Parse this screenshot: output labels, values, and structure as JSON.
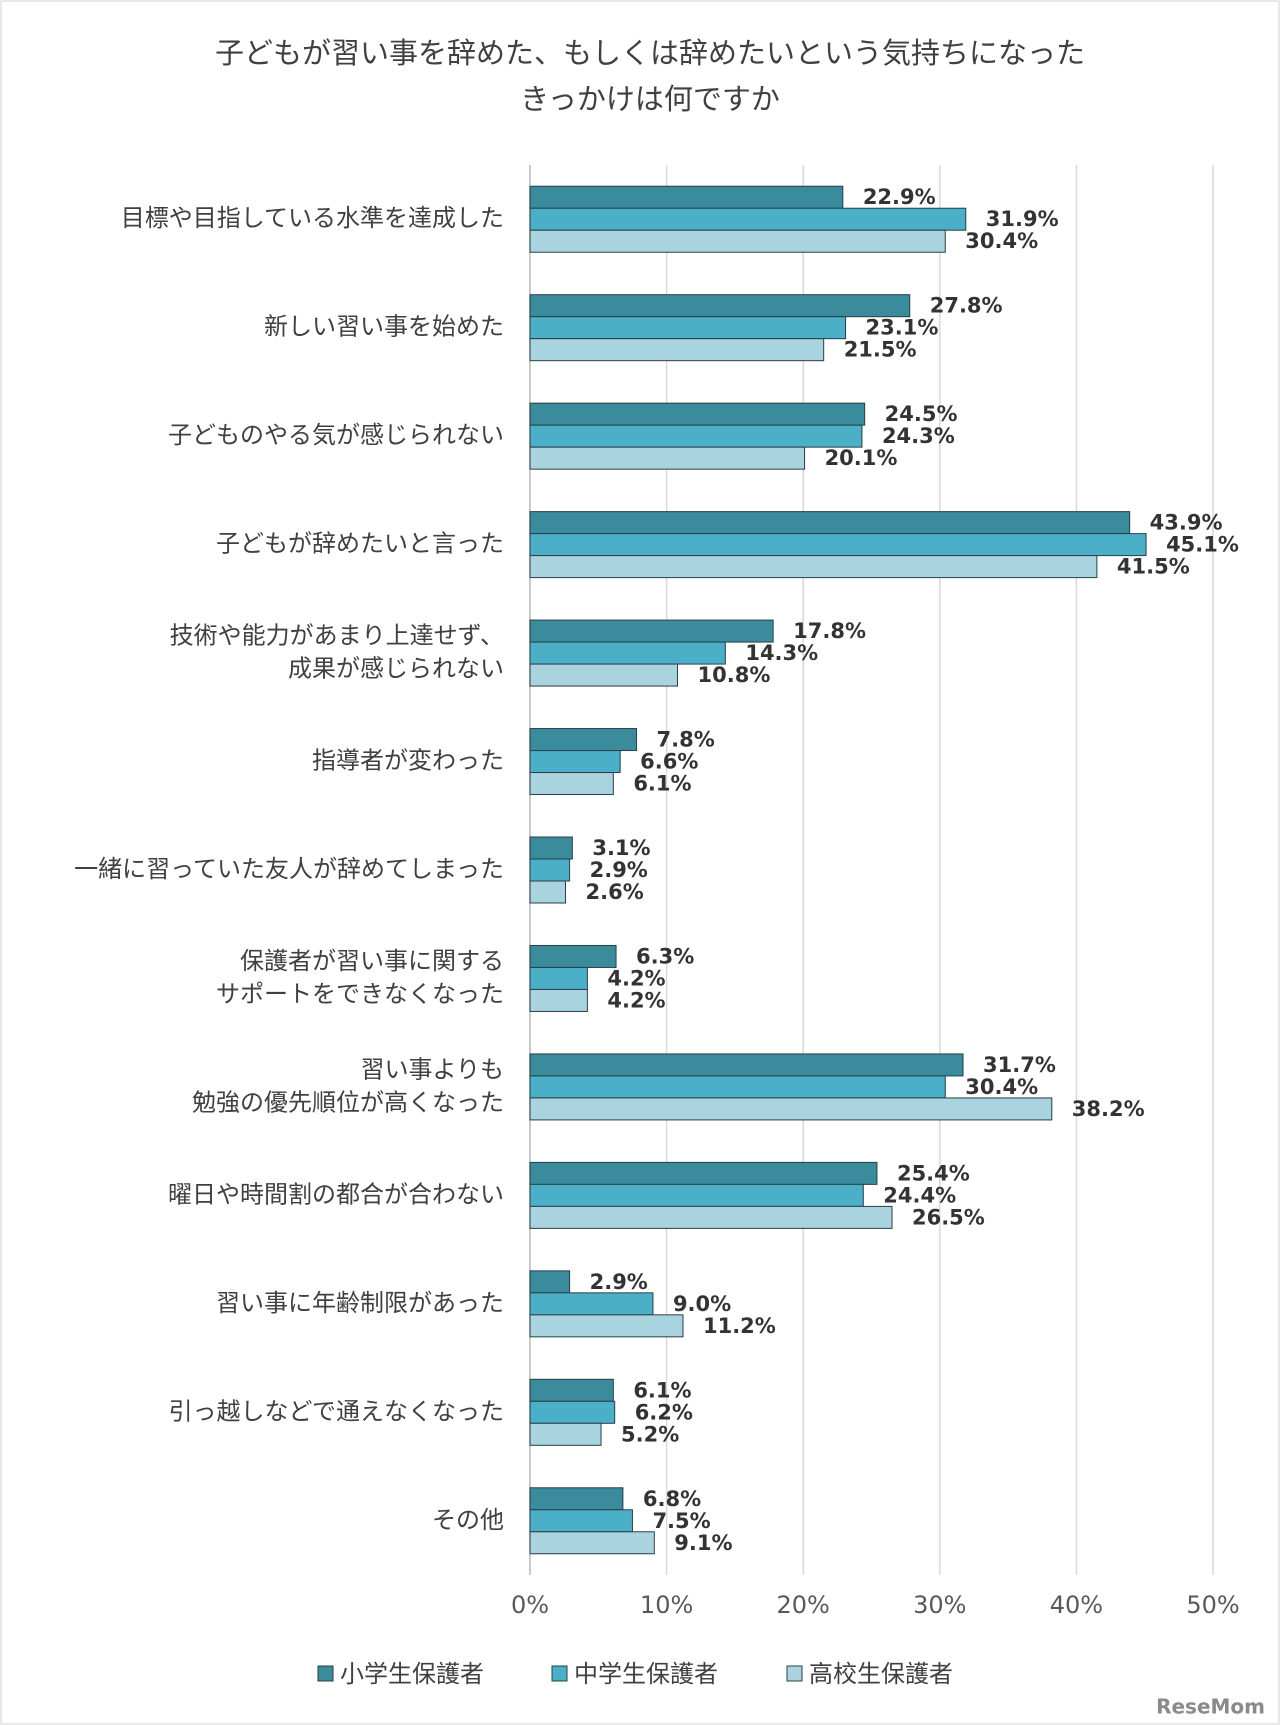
{
  "chart_data": {
    "type": "hbar",
    "title": [
      "子どもが習い事を辞めた、もしくは辞めたいという気持ちになった",
      "きっかけは何ですか"
    ],
    "categories": [
      "目標や目指している水準を達成した",
      "新しい習い事を始めた",
      "子どものやる気が感じられない",
      "子どもが辞めたいと言った",
      [
        "技術や能力があまり上達せず、",
        "成果が感じられない"
      ],
      "指導者が変わった",
      "一緒に習っていた友人が辞めてしまった",
      [
        "保護者が習い事に関する",
        "サポートをできなくなった"
      ],
      [
        "習い事よりも",
        "勉強の優先順位が高くなった"
      ],
      "曜日や時間割の都合が合わない",
      "習い事に年齢制限があった",
      "引っ越しなどで通えなくなった",
      "その他"
    ],
    "series": [
      {
        "name": "小学生保護者",
        "color": "#3a8b9b",
        "values": [
          22.9,
          27.8,
          24.5,
          43.9,
          17.8,
          7.8,
          3.1,
          6.3,
          31.7,
          25.4,
          2.9,
          6.1,
          6.8
        ],
        "value_labels": [
          "22.9%",
          "27.8%",
          "24.5%",
          "43.9%",
          "17.8%",
          "7.8%",
          "3.1%",
          "6.3%",
          "31.7%",
          "25.4%",
          "2.9%",
          "6.1%",
          "6.8%"
        ]
      },
      {
        "name": "中学生保護者",
        "color": "#4aafc7",
        "values": [
          31.9,
          23.1,
          24.3,
          45.1,
          14.3,
          6.6,
          2.9,
          4.2,
          30.4,
          24.4,
          9.0,
          6.2,
          7.5
        ],
        "value_labels": [
          "31.9%",
          "23.1%",
          "24.3%",
          "45.1%",
          "14.3%",
          "6.6%",
          "2.9%",
          "4.2%",
          "30.4%",
          "24.4%",
          "9.0%",
          "6.2%",
          "7.5%"
        ]
      },
      {
        "name": "高校生保護者",
        "color": "#a9d3df",
        "values": [
          30.4,
          21.5,
          20.1,
          41.5,
          10.8,
          6.1,
          2.6,
          4.2,
          38.2,
          26.5,
          11.2,
          5.2,
          9.1
        ],
        "value_labels": [
          "30.4%",
          "21.5%",
          "20.1%",
          "41.5%",
          "10.8%",
          "6.1%",
          "2.6%",
          "4.2%",
          "38.2%",
          "26.5%",
          "11.2%",
          "5.2%",
          "9.1%"
        ]
      }
    ],
    "xlim": [
      0,
      50
    ],
    "xticks": [
      {
        "value": 0,
        "label": "0%"
      },
      {
        "value": 10,
        "label": "10%"
      },
      {
        "value": 20,
        "label": "20%"
      },
      {
        "value": 30,
        "label": "30%"
      },
      {
        "value": 40,
        "label": "40%"
      },
      {
        "value": 50,
        "label": "50%"
      }
    ],
    "grid": true,
    "legend": "bottom",
    "watermark": "ReseMom"
  }
}
